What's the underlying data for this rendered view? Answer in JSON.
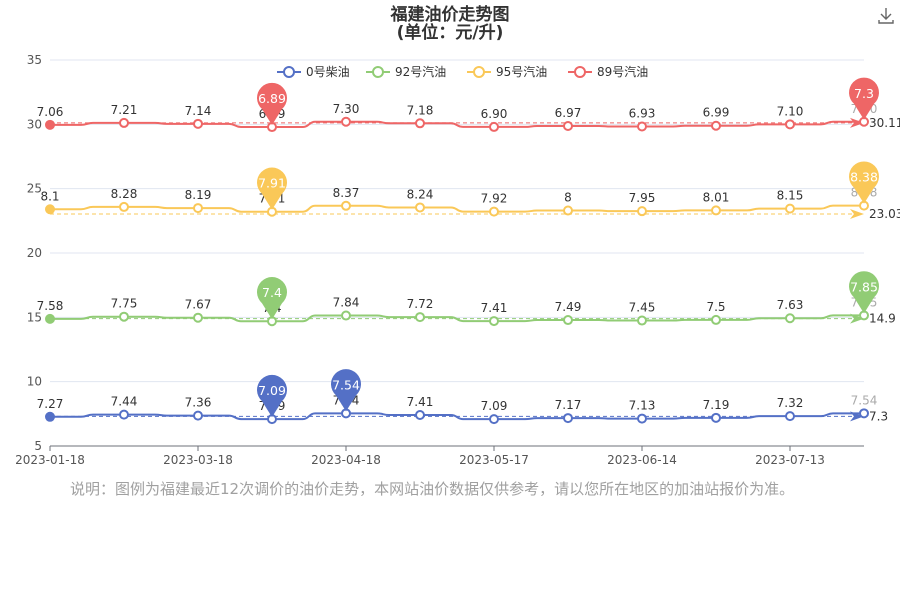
{
  "title_line1": "福建油价走势图",
  "title_line2": "(单位：元/升)",
  "note": "说明：图例为福建最近12次调价的油价走势，本网站油价数据仅供参考，请以您所在地区的加油站报价为准。",
  "download_icon": "download-icon",
  "chart_data": {
    "type": "line",
    "x_tick_labels": [
      "2023-01-18",
      "2023-03-18",
      "2023-04-18",
      "2023-05-17",
      "2023-06-14",
      "2023-07-13"
    ],
    "ylim": [
      5,
      35
    ],
    "y_ticks": [
      5,
      10,
      15,
      20,
      25,
      30,
      35
    ],
    "legend_position": "top-center",
    "series": [
      {
        "name": "0号柴油",
        "color": "#5470c6",
        "values": [
          7.27,
          7.44,
          7.36,
          7.09,
          7.54,
          7.41,
          7.09,
          7.17,
          7.13,
          7.19,
          7.32,
          7.54
        ],
        "labels": [
          "7.27",
          "7.44",
          "7.36",
          "7.09",
          "7.54",
          "7.41",
          "7.09",
          "7.17",
          "7.13",
          "7.19",
          "7.32",
          "7.54"
        ],
        "pins": [
          {
            "index": 3,
            "text": "7.09"
          },
          {
            "index": 4,
            "text": "7.54"
          }
        ],
        "avg_label": "7.3"
      },
      {
        "name": "92号汽油",
        "color": "#91cc75",
        "values": [
          7.58,
          7.75,
          7.67,
          7.4,
          7.84,
          7.72,
          7.41,
          7.49,
          7.45,
          7.5,
          7.63,
          7.85
        ],
        "labels": [
          "7.58",
          "7.75",
          "7.67",
          "7.4",
          "7.84",
          "7.72",
          "7.41",
          "7.49",
          "7.45",
          "7.5",
          "7.63",
          "7.85"
        ],
        "pins": [
          {
            "index": 3,
            "text": "7.4"
          },
          {
            "index": 11,
            "text": "7.85"
          }
        ],
        "avg_label": "14.9"
      },
      {
        "name": "95号汽油",
        "color": "#fac858",
        "values": [
          8.1,
          8.28,
          8.19,
          7.91,
          8.37,
          8.24,
          7.92,
          8,
          7.95,
          8.01,
          8.15,
          8.38
        ],
        "labels": [
          "8.1",
          "8.28",
          "8.19",
          "7.91",
          "8.37",
          "8.24",
          "7.92",
          "8",
          "7.95",
          "8.01",
          "8.15",
          "8.38"
        ],
        "pins": [
          {
            "index": 3,
            "text": "7.91"
          },
          {
            "index": 11,
            "text": "8.38"
          }
        ],
        "avg_label": "23.03"
      },
      {
        "name": "89号汽油",
        "color": "#ee6666",
        "values": [
          7.06,
          7.21,
          7.14,
          6.89,
          7.3,
          7.18,
          6.9,
          6.97,
          6.93,
          6.99,
          7.1,
          7.3
        ],
        "labels": [
          "7.06",
          "7.21",
          "7.14",
          "6.89",
          "7.30",
          "7.18",
          "6.90",
          "6.97",
          "6.93",
          "6.99",
          "7.10",
          "7.30"
        ],
        "pins": [
          {
            "index": 3,
            "text": "6.89"
          },
          {
            "index": 11,
            "text": "7.3"
          }
        ],
        "avg_label": "30.11"
      }
    ]
  }
}
